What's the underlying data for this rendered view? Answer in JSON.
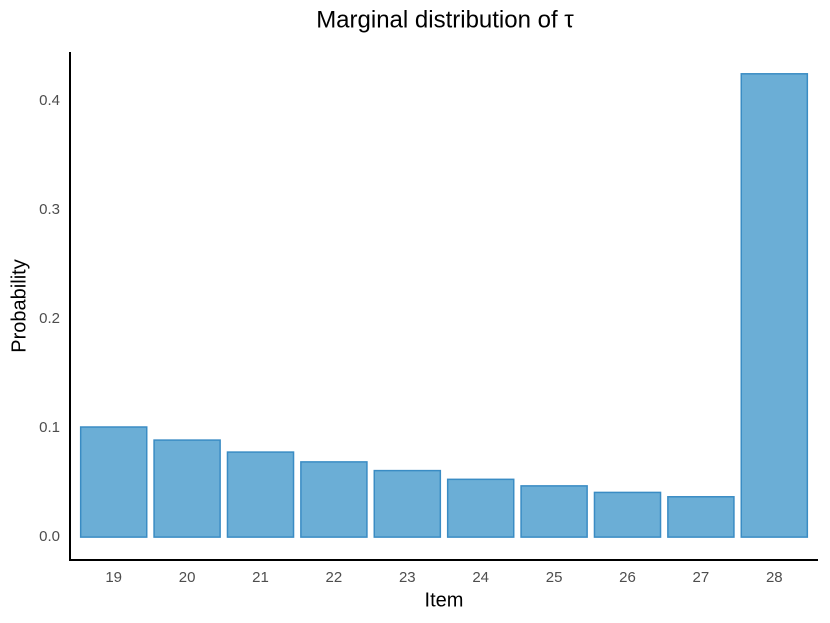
{
  "chart_data": {
    "type": "bar",
    "title": "Marginal distribution of τ",
    "x_label": "Item",
    "y_label": "Probability",
    "categories": [
      "19",
      "20",
      "21",
      "22",
      "23",
      "24",
      "25",
      "26",
      "27",
      "28"
    ],
    "values": [
      0.101,
      0.089,
      0.078,
      0.069,
      0.061,
      0.053,
      0.047,
      0.041,
      0.037,
      0.425
    ],
    "color": "#6baed6",
    "edge_color": "#3a8cc4",
    "ylim": [
      -0.021,
      0.445
    ],
    "yticks": [
      {
        "value": 0,
        "label": "0.0"
      },
      0.1,
      0.2,
      0.3,
      0.4
    ],
    "grid": false
  }
}
